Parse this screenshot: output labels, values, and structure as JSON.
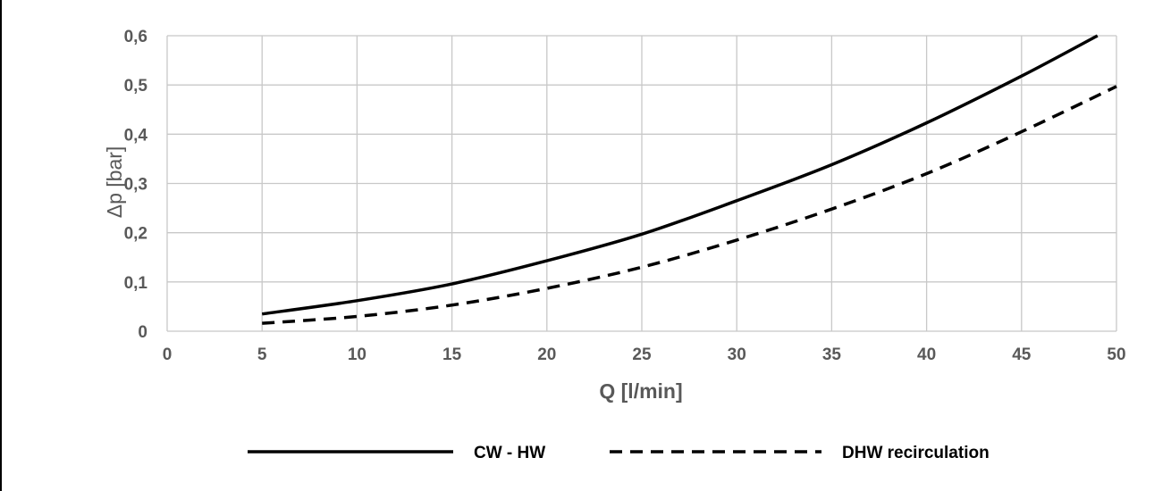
{
  "chart_data": {
    "type": "line",
    "xlabel": "Q [l/min]",
    "ylabel": "Δp [bar]",
    "xlim": [
      0,
      50
    ],
    "ylim": [
      0,
      0.6
    ],
    "x_ticks": [
      "0",
      "5",
      "10",
      "15",
      "20",
      "25",
      "30",
      "35",
      "40",
      "45",
      "50"
    ],
    "y_ticks": [
      "0",
      "0,1",
      "0,2",
      "0,3",
      "0,4",
      "0,5",
      "0,6"
    ],
    "grid": true,
    "legend_position": "bottom",
    "series": [
      {
        "name": "CW - HW",
        "style": "solid",
        "color": "#000000",
        "x": [
          5,
          10,
          15,
          20,
          25,
          30,
          35,
          40,
          45,
          49
        ],
        "y": [
          0.035,
          0.062,
          0.096,
          0.143,
          0.197,
          0.265,
          0.338,
          0.423,
          0.518,
          0.6
        ]
      },
      {
        "name": "DHW recirculation",
        "style": "dashed",
        "color": "#000000",
        "x": [
          5,
          10,
          15,
          20,
          25,
          30,
          35,
          40,
          45,
          50
        ],
        "y": [
          0.016,
          0.03,
          0.053,
          0.087,
          0.13,
          0.185,
          0.248,
          0.32,
          0.405,
          0.497
        ]
      }
    ]
  }
}
